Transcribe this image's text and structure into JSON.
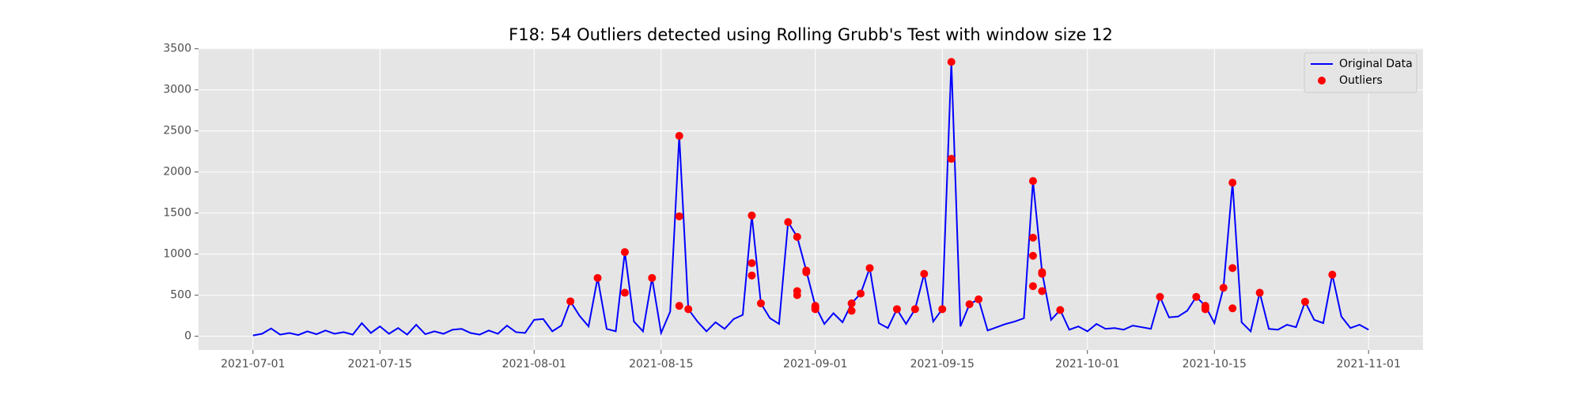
{
  "chart_data": {
    "type": "line",
    "title": "F18: 54 Outliers detected using Rolling Grubb's Test with window size 12",
    "series": [
      {
        "name": "Original Data",
        "type": "line",
        "color": "#0000ff",
        "x": [
          "2021-07-01",
          "2021-07-02",
          "2021-07-03",
          "2021-07-04",
          "2021-07-05",
          "2021-07-06",
          "2021-07-07",
          "2021-07-08",
          "2021-07-09",
          "2021-07-10",
          "2021-07-11",
          "2021-07-12",
          "2021-07-13",
          "2021-07-14",
          "2021-07-15",
          "2021-07-16",
          "2021-07-17",
          "2021-07-18",
          "2021-07-19",
          "2021-07-20",
          "2021-07-21",
          "2021-07-22",
          "2021-07-23",
          "2021-07-24",
          "2021-07-25",
          "2021-07-26",
          "2021-07-27",
          "2021-07-28",
          "2021-07-29",
          "2021-07-30",
          "2021-07-31",
          "2021-08-01",
          "2021-08-02",
          "2021-08-03",
          "2021-08-04",
          "2021-08-05",
          "2021-08-06",
          "2021-08-07",
          "2021-08-08",
          "2021-08-09",
          "2021-08-10",
          "2021-08-11",
          "2021-08-12",
          "2021-08-13",
          "2021-08-14",
          "2021-08-15",
          "2021-08-16",
          "2021-08-17",
          "2021-08-18",
          "2021-08-19",
          "2021-08-20",
          "2021-08-21",
          "2021-08-22",
          "2021-08-23",
          "2021-08-24",
          "2021-08-25",
          "2021-08-26",
          "2021-08-27",
          "2021-08-28",
          "2021-08-29",
          "2021-08-30",
          "2021-08-31",
          "2021-09-01",
          "2021-09-02",
          "2021-09-03",
          "2021-09-04",
          "2021-09-05",
          "2021-09-06",
          "2021-09-07",
          "2021-09-08",
          "2021-09-09",
          "2021-09-10",
          "2021-09-11",
          "2021-09-12",
          "2021-09-13",
          "2021-09-14",
          "2021-09-15",
          "2021-09-16",
          "2021-09-17",
          "2021-09-18",
          "2021-09-19",
          "2021-09-20",
          "2021-09-21",
          "2021-09-22",
          "2021-09-23",
          "2021-09-24",
          "2021-09-25",
          "2021-09-26",
          "2021-09-27",
          "2021-09-28",
          "2021-09-29",
          "2021-09-30",
          "2021-10-01",
          "2021-10-02",
          "2021-10-03",
          "2021-10-04",
          "2021-10-05",
          "2021-10-06",
          "2021-10-07",
          "2021-10-08",
          "2021-10-09",
          "2021-10-10",
          "2021-10-11",
          "2021-10-12",
          "2021-10-13",
          "2021-10-14",
          "2021-10-15",
          "2021-10-16",
          "2021-10-17",
          "2021-10-18",
          "2021-10-19",
          "2021-10-20",
          "2021-10-21",
          "2021-10-22",
          "2021-10-23",
          "2021-10-24",
          "2021-10-25",
          "2021-10-26",
          "2021-10-27",
          "2021-10-28",
          "2021-10-29",
          "2021-10-30",
          "2021-10-31",
          "2021-11-01"
        ],
        "values": [
          10,
          30,
          95,
          20,
          40,
          15,
          60,
          25,
          70,
          30,
          50,
          20,
          160,
          40,
          120,
          30,
          100,
          20,
          140,
          25,
          60,
          30,
          80,
          90,
          40,
          20,
          70,
          30,
          130,
          50,
          40,
          200,
          210,
          60,
          130,
          425,
          250,
          120,
          710,
          90,
          60,
          1025,
          180,
          60,
          710,
          40,
          300,
          2440,
          330,
          180,
          60,
          170,
          90,
          210,
          260,
          1470,
          400,
          220,
          150,
          1390,
          1210,
          800,
          370,
          150,
          280,
          170,
          400,
          520,
          830,
          160,
          100,
          330,
          150,
          330,
          760,
          180,
          330,
          3340,
          120,
          390,
          450,
          70,
          110,
          150,
          180,
          220,
          1890,
          780,
          200,
          320,
          80,
          120,
          60,
          150,
          90,
          100,
          80,
          130,
          110,
          90,
          480,
          230,
          240,
          310,
          480,
          370,
          160,
          590,
          1870,
          170,
          60,
          530,
          90,
          80,
          140,
          110,
          420,
          200,
          160,
          750,
          240,
          100,
          140,
          80
        ]
      },
      {
        "name": "Outliers",
        "type": "scatter",
        "color": "#ff0000",
        "x": [
          "2021-08-05",
          "2021-08-08",
          "2021-08-11",
          "2021-08-11",
          "2021-08-14",
          "2021-08-17",
          "2021-08-17",
          "2021-08-17",
          "2021-08-18",
          "2021-08-25",
          "2021-08-25",
          "2021-08-25",
          "2021-08-26",
          "2021-08-29",
          "2021-08-30",
          "2021-08-30",
          "2021-08-30",
          "2021-08-31",
          "2021-08-31",
          "2021-09-01",
          "2021-09-01",
          "2021-09-01",
          "2021-09-05",
          "2021-09-05",
          "2021-09-06",
          "2021-09-07",
          "2021-09-10",
          "2021-09-12",
          "2021-09-13",
          "2021-09-15",
          "2021-09-16",
          "2021-09-16",
          "2021-09-18",
          "2021-09-19",
          "2021-09-25",
          "2021-09-25",
          "2021-09-25",
          "2021-09-25",
          "2021-09-26",
          "2021-09-26",
          "2021-09-26",
          "2021-09-28",
          "2021-10-09",
          "2021-10-13",
          "2021-10-14",
          "2021-10-14",
          "2021-10-14",
          "2021-10-16",
          "2021-10-17",
          "2021-10-17",
          "2021-10-17",
          "2021-10-20",
          "2021-10-25",
          "2021-10-28"
        ],
        "values": [
          425,
          710,
          530,
          1025,
          710,
          1460,
          2440,
          370,
          330,
          1470,
          890,
          740,
          400,
          1390,
          1210,
          550,
          500,
          780,
          800,
          350,
          370,
          330,
          400,
          310,
          520,
          830,
          330,
          330,
          760,
          330,
          2160,
          3340,
          390,
          450,
          610,
          980,
          1200,
          1890,
          760,
          780,
          550,
          320,
          480,
          480,
          370,
          350,
          330,
          590,
          1870,
          830,
          340,
          530,
          420,
          750
        ]
      }
    ],
    "xlim": [
      "2021-06-25",
      "2021-11-07"
    ],
    "xticks": [
      "2021-07-01",
      "2021-07-15",
      "2021-08-01",
      "2021-08-15",
      "2021-09-01",
      "2021-09-15",
      "2021-10-01",
      "2021-10-15",
      "2021-11-01"
    ],
    "ylim": [
      -167,
      3507
    ],
    "yticks": [
      0,
      500,
      1000,
      1500,
      2000,
      2500,
      3000,
      3500
    ],
    "grid": true,
    "legend": "upper right"
  }
}
